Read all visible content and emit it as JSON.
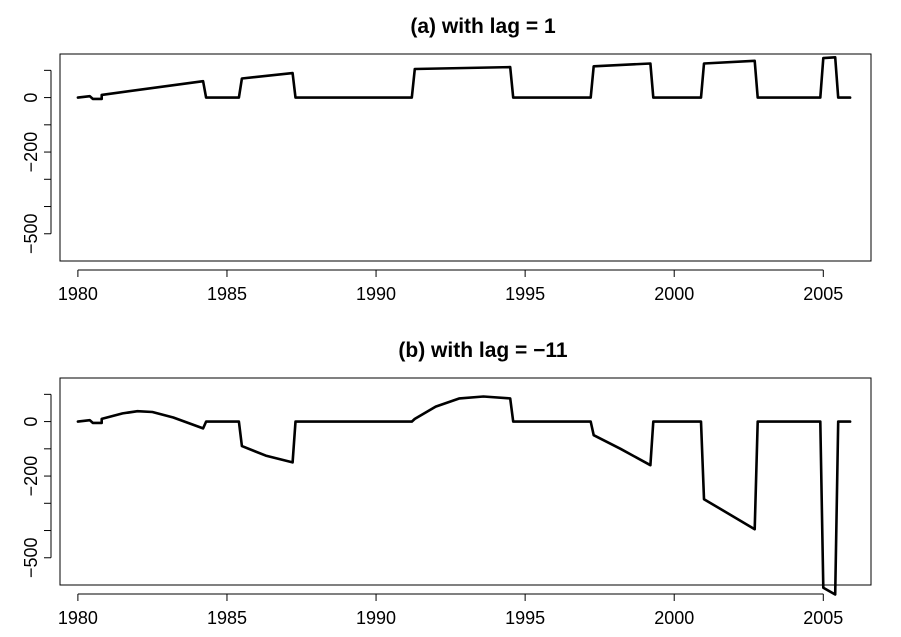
{
  "chart_data": [
    {
      "type": "line",
      "title": "(a) with lag = 1",
      "xlabel": "",
      "ylabel": "",
      "xlim": [
        1979.4,
        2006.6
      ],
      "ylim": [
        -600,
        160
      ],
      "x_ticks": [
        1980,
        1985,
        1990,
        1995,
        2000,
        2005
      ],
      "y_ticks": [
        0,
        -200,
        -500
      ],
      "y_ticks_unlabeled": [
        100,
        -100,
        -300,
        -400
      ],
      "grid": false,
      "series": [
        {
          "x": [
            1980.0,
            1980.4,
            1980.5,
            1980.8,
            1980.8,
            1984.2,
            1984.3,
            1985.4,
            1985.5,
            1987.2,
            1987.3,
            1991.2,
            1991.3,
            1994.5,
            1994.6,
            1997.2,
            1997.3,
            1999.2,
            1999.3,
            2000.9,
            2001.0,
            2002.7,
            2002.8,
            2004.9,
            2005.0,
            2005.4,
            2005.5,
            2005.9
          ],
          "y": [
            0,
            5,
            -5,
            -5,
            10,
            60,
            0,
            0,
            70,
            90,
            0,
            0,
            105,
            112,
            0,
            0,
            115,
            125,
            0,
            0,
            125,
            135,
            0,
            0,
            145,
            148,
            0,
            0
          ]
        }
      ]
    },
    {
      "type": "line",
      "title": "(b) with lag = −11",
      "xlabel": "",
      "ylabel": "",
      "xlim": [
        1979.4,
        2006.6
      ],
      "ylim": [
        -600,
        160
      ],
      "x_ticks": [
        1980,
        1985,
        1990,
        1995,
        2000,
        2005
      ],
      "y_ticks": [
        0,
        -200,
        -500
      ],
      "y_ticks_unlabeled": [
        100,
        -100,
        -300,
        -400
      ],
      "grid": false,
      "series": [
        {
          "x": [
            1980.0,
            1980.4,
            1980.5,
            1980.8,
            1980.8,
            1981.5,
            1982.0,
            1982.5,
            1983.2,
            1984.2,
            1984.3,
            1985.4,
            1985.5,
            1986.3,
            1987.2,
            1987.3,
            1991.2,
            1991.3,
            1992.0,
            1992.8,
            1993.6,
            1994.5,
            1994.6,
            1997.2,
            1997.3,
            1998.2,
            1999.2,
            1999.3,
            2000.9,
            2001.0,
            2002.7,
            2002.8,
            2004.9,
            2005.0,
            2005.4,
            2005.5,
            2005.9
          ],
          "y": [
            0,
            5,
            -5,
            -5,
            10,
            30,
            38,
            35,
            15,
            -25,
            0,
            0,
            -90,
            -125,
            -150,
            0,
            0,
            10,
            55,
            85,
            92,
            85,
            0,
            0,
            -50,
            -100,
            -160,
            0,
            0,
            -285,
            -395,
            0,
            0,
            -610,
            -635,
            0,
            0
          ]
        }
      ]
    }
  ]
}
